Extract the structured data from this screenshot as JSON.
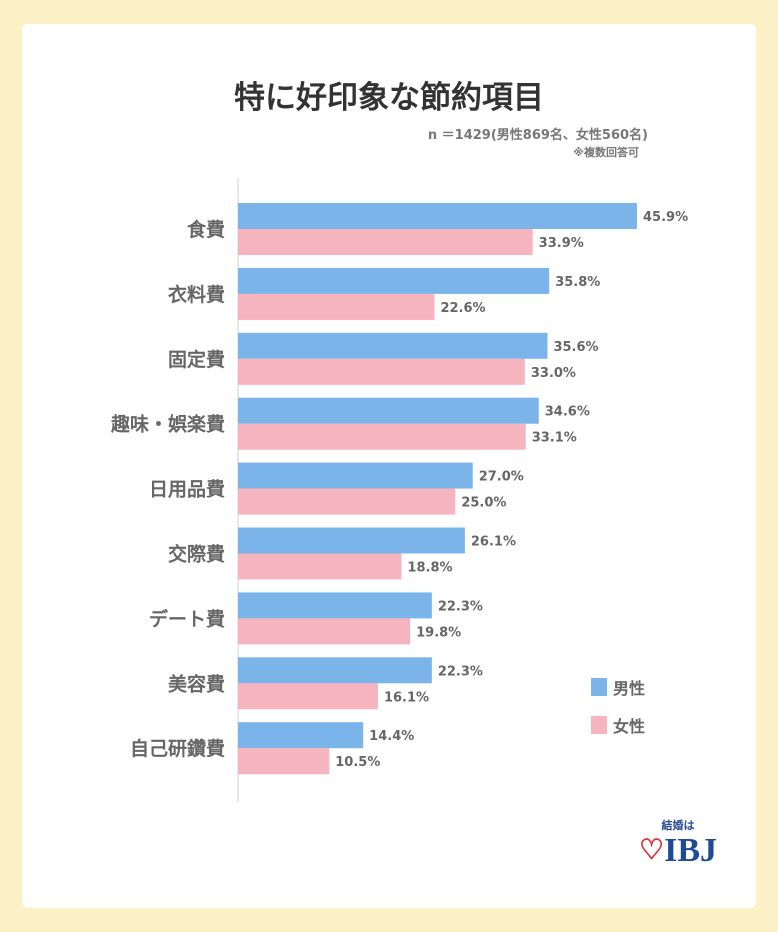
{
  "chart_data": {
    "type": "bar",
    "orientation": "horizontal",
    "title": "特に好印象な節約項目",
    "subtitle": "n ＝1429(男性869名、女性560名)",
    "note": "※複数回答可",
    "categories": [
      "食費",
      "衣料費",
      "固定費",
      "趣味・娯楽費",
      "日用品費",
      "交際費",
      "デート費",
      "美容費",
      "自己研鑽費"
    ],
    "series": [
      {
        "name": "男性",
        "color": "#7ab4e8",
        "values": [
          45.9,
          35.8,
          35.6,
          34.6,
          27.0,
          26.1,
          22.3,
          22.3,
          14.4
        ]
      },
      {
        "name": "女性",
        "color": "#f5b4be",
        "values": [
          33.9,
          22.6,
          33.0,
          33.1,
          25.0,
          18.8,
          19.8,
          16.1,
          10.5
        ]
      }
    ],
    "value_suffix": "%",
    "legend": "bottom-right",
    "xlim": [
      0,
      50
    ]
  },
  "logo": {
    "tagline": "結婚は",
    "brand": "IBJ"
  }
}
